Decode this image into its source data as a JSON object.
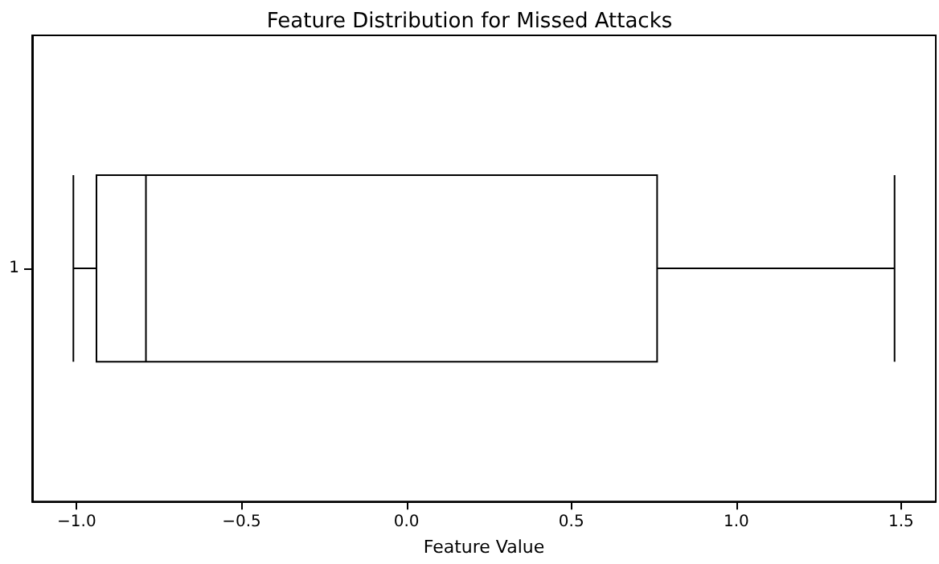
{
  "chart_data": {
    "type": "box",
    "orientation": "horizontal",
    "title": "Feature Distribution for Missed Attacks",
    "xlabel": "Feature Value",
    "categories": [
      "1"
    ],
    "boxes": [
      {
        "low": -1.01,
        "q1": -0.94,
        "median": -0.79,
        "q3": 0.76,
        "high": 1.48
      }
    ],
    "xlim": [
      -1.135,
      1.605
    ],
    "xticks": [
      {
        "value": -1,
        "label": "−1.0"
      },
      {
        "value": -0.5,
        "label": "−0.5"
      },
      {
        "value": 0,
        "label": "0.0"
      },
      {
        "value": 0.5,
        "label": "0.5"
      },
      {
        "value": 1,
        "label": "1.0"
      },
      {
        "value": 1.5,
        "label": "1.5"
      }
    ]
  }
}
